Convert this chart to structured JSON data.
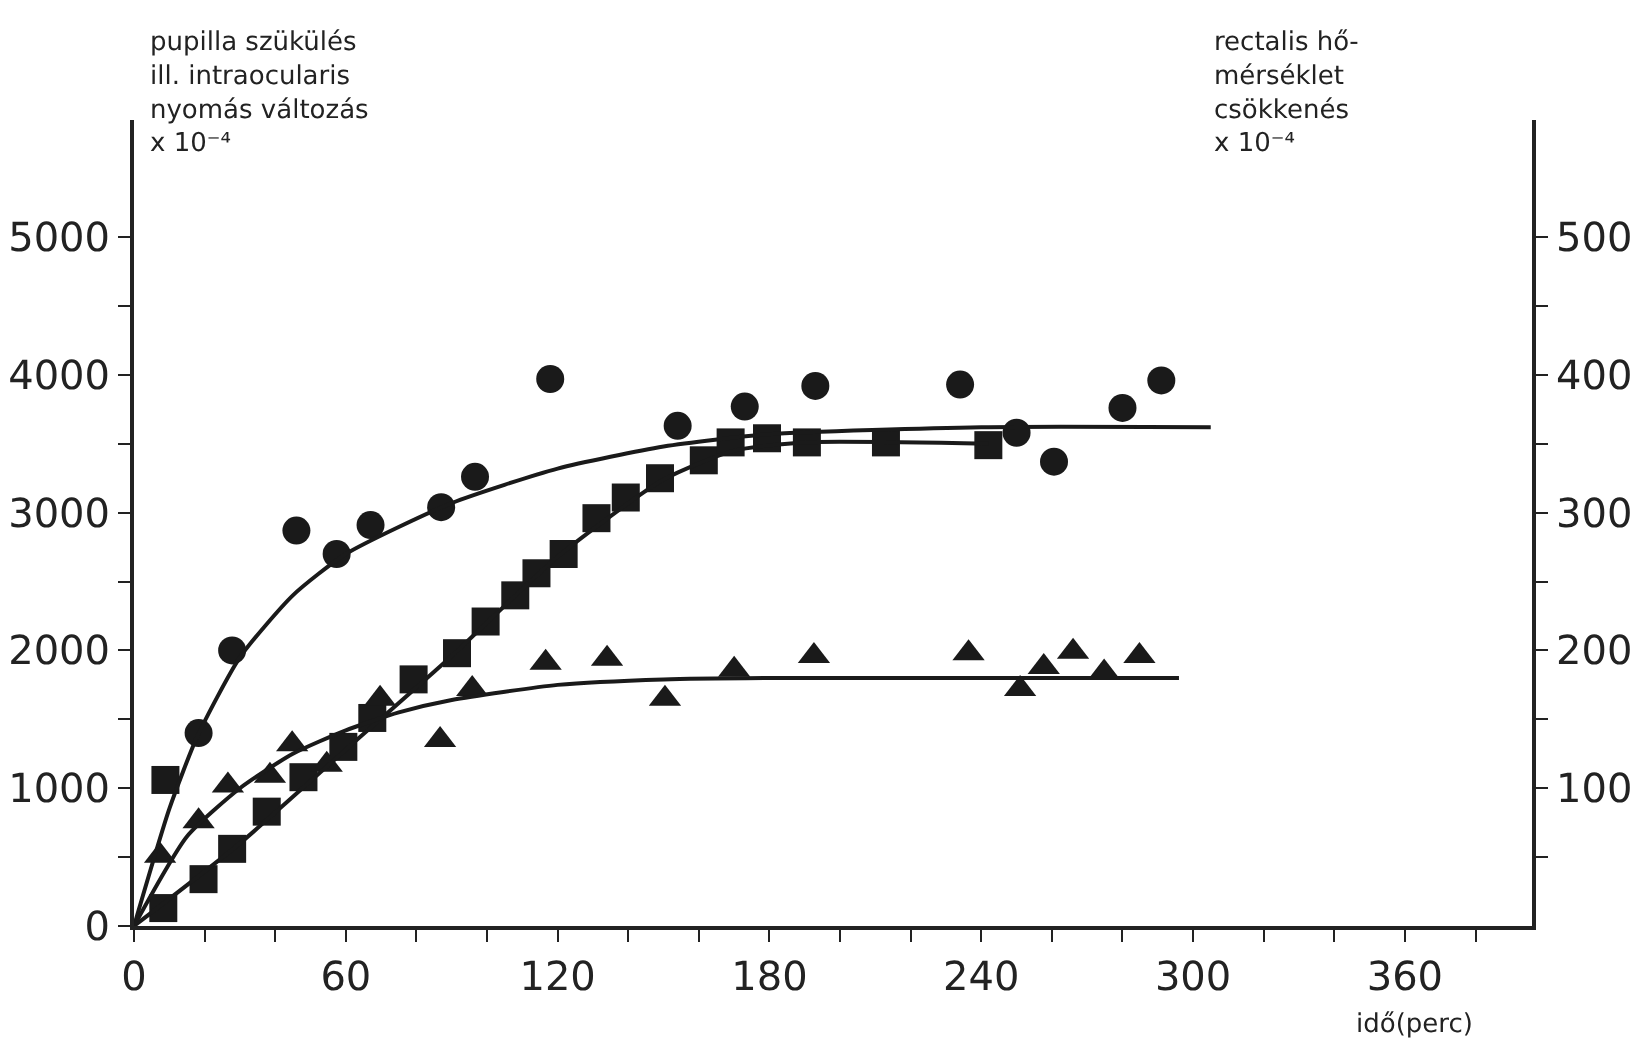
{
  "chart_data": {
    "type": "scatter",
    "ylabel": "pupilla szükülés\nill. intraocularis\nnyomás változás\nx 10⁻⁴",
    "y2label": "rectalis hő-\nmérséklet\ncsökkenés\nx 10⁻⁴",
    "xlabel": "idő(perc)",
    "xlim": [
      0,
      396
    ],
    "xticks": [
      0,
      {
        "value": 20,
        "label": null
      },
      {
        "value": 40,
        "label": null
      },
      60,
      {
        "value": 80,
        "label": null
      },
      {
        "value": 100,
        "label": null
      },
      120,
      {
        "value": 140,
        "label": null
      },
      {
        "value": 160,
        "label": null
      },
      180,
      {
        "value": 200,
        "label": null
      },
      {
        "value": 220,
        "label": null
      },
      240,
      {
        "value": 260,
        "label": null
      },
      {
        "value": 280,
        "label": null
      },
      300,
      {
        "value": 320,
        "label": null
      },
      {
        "value": 340,
        "label": null
      },
      360,
      {
        "value": 380,
        "label": null
      }
    ],
    "ylim": [
      0,
      5850
    ],
    "yticks": [
      0,
      {
        "value": 500,
        "label": null
      },
      1000,
      {
        "value": 1500,
        "label": null
      },
      2000,
      {
        "value": 2500,
        "label": null
      },
      3000,
      {
        "value": 3500,
        "label": null
      },
      4000,
      {
        "value": 4500,
        "label": null
      },
      5000
    ],
    "y2lim": [
      0,
      585
    ],
    "y2ticks": [
      {
        "value": 50,
        "label": null
      },
      100,
      {
        "value": 150,
        "label": null
      },
      {
        "value": 200,
        "label": "200"
      },
      {
        "value": 250,
        "label": null
      },
      300,
      {
        "value": 350,
        "label": null
      },
      400,
      {
        "value": 450,
        "label": null
      },
      500
    ],
    "series": [
      {
        "marker": "circle",
        "color": "#1a1a1a",
        "x": [
          18.3,
          27.8,
          46,
          57.4,
          67,
          87,
          96.6,
          117.9,
          154,
          173,
          193,
          234,
          250,
          260.6,
          280,
          291
        ],
        "values": [
          1400,
          2000,
          2870,
          2700,
          2910,
          3040,
          3260,
          3970,
          3630,
          3770,
          3920,
          3930,
          3580,
          3370,
          3760,
          3960
        ]
      },
      {
        "marker": "square",
        "color": "#1a1a1a",
        "x": [
          8.9,
          8.3,
          19.7,
          27.8,
          37.6,
          48,
          59.3,
          67.5,
          79.2,
          91.5,
          99.6,
          108,
          114,
          121.7,
          131,
          139.3,
          149,
          161.4,
          169,
          179.3,
          190.6,
          213,
          242
        ],
        "values": [
          1060,
          130,
          340,
          560,
          830,
          1080,
          1300,
          1510,
          1790,
          1980,
          2210,
          2400,
          2560,
          2700,
          2960,
          3110,
          3250,
          3380,
          3510,
          3540,
          3510,
          3510,
          3490
        ]
      },
      {
        "marker": "triangle",
        "color": "#1a1a1a",
        "x": [
          7.4,
          18.3,
          26.6,
          38.5,
          44.8,
          54.6,
          69.7,
          86.7,
          95.8,
          116.6,
          134,
          150.4,
          170,
          192.6,
          236.4,
          251,
          257.7,
          266,
          274.8,
          284.8
        ],
        "values": [
          510,
          760,
          1020,
          1090,
          1320,
          1170,
          1650,
          1350,
          1720,
          1910,
          1940,
          1650,
          1860,
          1960,
          1980,
          1720,
          1880,
          1990,
          1840,
          1960
        ]
      },
      {
        "type": "line",
        "marker": "none",
        "color": "#1a1a1a",
        "x": [
          0,
          10,
          18,
          30,
          45,
          60,
          90,
          120,
          150,
          180,
          240,
          305
        ],
        "values": [
          0,
          850,
          1380,
          1950,
          2400,
          2700,
          3070,
          3320,
          3480,
          3570,
          3620,
          3620
        ]
      },
      {
        "type": "line",
        "marker": "none",
        "color": "#1a1a1a",
        "x": [
          0,
          30,
          60,
          90,
          120,
          150,
          170,
          190,
          242
        ],
        "values": [
          0,
          600,
          1280,
          1960,
          2680,
          3240,
          3450,
          3510,
          3500
        ]
      },
      {
        "type": "line",
        "marker": "none",
        "color": "#1a1a1a",
        "x": [
          0,
          15,
          30,
          45,
          60,
          75,
          90,
          120,
          150,
          180,
          296
        ],
        "values": [
          0,
          650,
          1000,
          1250,
          1420,
          1550,
          1640,
          1750,
          1790,
          1800,
          1800
        ]
      }
    ]
  }
}
